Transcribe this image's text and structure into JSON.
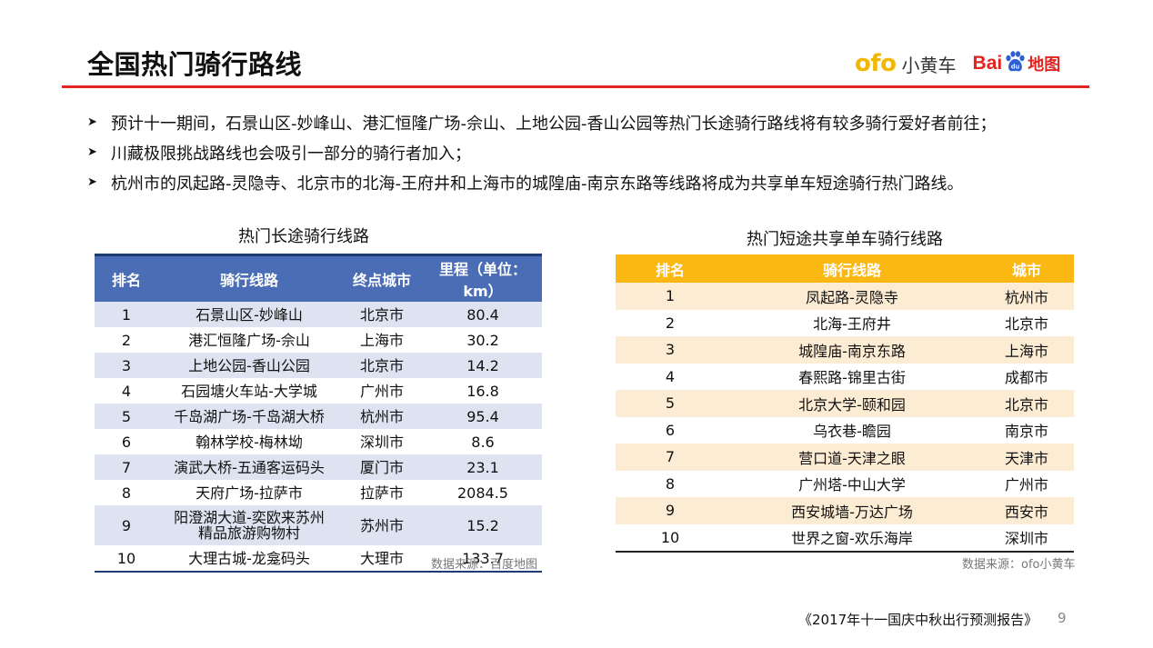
{
  "title": "全国热门骑行路线",
  "logos": {
    "ofo": "ofo",
    "ofo_cn": "小黄车",
    "baidu_bai": "Bai",
    "baidu_du": "du",
    "baidu_map": "地图"
  },
  "bullets": [
    "预计十一期间，石景山区-妙峰山、港汇恒隆广场-佘山、上地公园-香山公园等热门长途骑行路线将有较多骑行爱好者前往；",
    "川藏极限挑战路线也会吸引一部分的骑行者加入；",
    "杭州市的凤起路-灵隐寺、北京市的北海-王府井和上海市的城隍庙-南京东路等线路将成为共享单车短途骑行热门路线。"
  ],
  "table_long": {
    "caption": "热门长途骑行线路",
    "headers": [
      "排名",
      "骑行线路",
      "终点城市",
      "里程（单位：km）"
    ],
    "rows": [
      [
        "1",
        "石景山区-妙峰山",
        "北京市",
        "80.4"
      ],
      [
        "2",
        "港汇恒隆广场-佘山",
        "上海市",
        "30.2"
      ],
      [
        "3",
        "上地公园-香山公园",
        "北京市",
        "14.2"
      ],
      [
        "4",
        "石园塘火车站-大学城",
        "广州市",
        "16.8"
      ],
      [
        "5",
        "千岛湖广场-千岛湖大桥",
        "杭州市",
        "95.4"
      ],
      [
        "6",
        "翰林学校-梅林坳",
        "深圳市",
        "8.6"
      ],
      [
        "7",
        "演武大桥-五通客运码头",
        "厦门市",
        "23.1"
      ],
      [
        "8",
        "天府广场-拉萨市",
        "拉萨市",
        "2084.5"
      ],
      [
        "9",
        "阳澄湖大道-奕欧来苏州精品旅游购物村",
        "苏州市",
        "15.2"
      ],
      [
        "10",
        "大理古城-龙龛码头",
        "大理市",
        "133.7"
      ]
    ],
    "source": "数据来源：百度地图"
  },
  "table_short": {
    "caption": "热门短途共享单车骑行线路",
    "headers": [
      "排名",
      "骑行线路",
      "城市"
    ],
    "rows": [
      [
        "1",
        "凤起路-灵隐寺",
        "杭州市"
      ],
      [
        "2",
        "北海-王府井",
        "北京市"
      ],
      [
        "3",
        "城隍庙-南京东路",
        "上海市"
      ],
      [
        "4",
        "春熙路-锦里古街",
        "成都市"
      ],
      [
        "5",
        "北京大学-颐和园",
        "北京市"
      ],
      [
        "6",
        "乌衣巷-瞻园",
        "南京市"
      ],
      [
        "7",
        "营口道-天津之眼",
        "天津市"
      ],
      [
        "8",
        "广州塔-中山大学",
        "广州市"
      ],
      [
        "9",
        "西安城墙-万达广场",
        "西安市"
      ],
      [
        "10",
        "世界之窗-欢乐海岸",
        "深圳市"
      ]
    ],
    "source": "数据来源：ofo小黄车"
  },
  "footer": "《2017年十一国庆中秋出行预测报告》",
  "page_number": "9",
  "colors": {
    "accent_red": "#e0241f",
    "long_header": "#4a6db5",
    "short_header": "#fbb812"
  },
  "icons": {
    "bullet": "arrow-bullet-icon",
    "baidu": "baidu-paw-icon"
  }
}
